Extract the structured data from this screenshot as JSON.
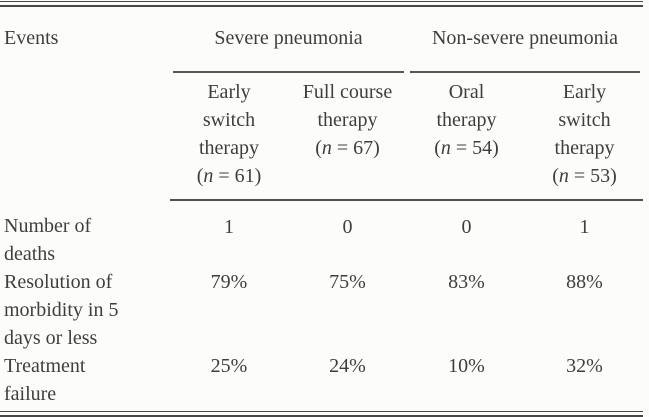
{
  "table": {
    "corner_label": "Events",
    "groups": [
      {
        "label": "Severe pneumonia"
      },
      {
        "label": "Non-severe pneumonia"
      }
    ],
    "columns": [
      {
        "title": "Early\nswitch\ntherapy",
        "n_parts": [
          "(",
          "n",
          " = 61)"
        ]
      },
      {
        "title": "Full course\ntherapy",
        "n_parts": [
          "(",
          "n",
          " = 67)"
        ]
      },
      {
        "title": "Oral\ntherapy",
        "n_parts": [
          "(",
          "n",
          " = 54)"
        ]
      },
      {
        "title": "Early\nswitch\ntherapy",
        "n_parts": [
          "(",
          "n",
          " = 53)"
        ]
      }
    ],
    "rows": [
      {
        "label": "Number of\ndeaths",
        "values": [
          "1",
          "0",
          "0",
          "1"
        ]
      },
      {
        "label": "Resolution of\nmorbidity in 5\ndays or less",
        "values": [
          "79%",
          "75%",
          "83%",
          "88%"
        ]
      },
      {
        "label": "Treatment\nfailure",
        "values": [
          "25%",
          "24%",
          "10%",
          "32%"
        ]
      }
    ]
  },
  "colors": {
    "background": "#fcfcfa",
    "text": "#3e3e3e",
    "rule": "#4f4f4f"
  }
}
